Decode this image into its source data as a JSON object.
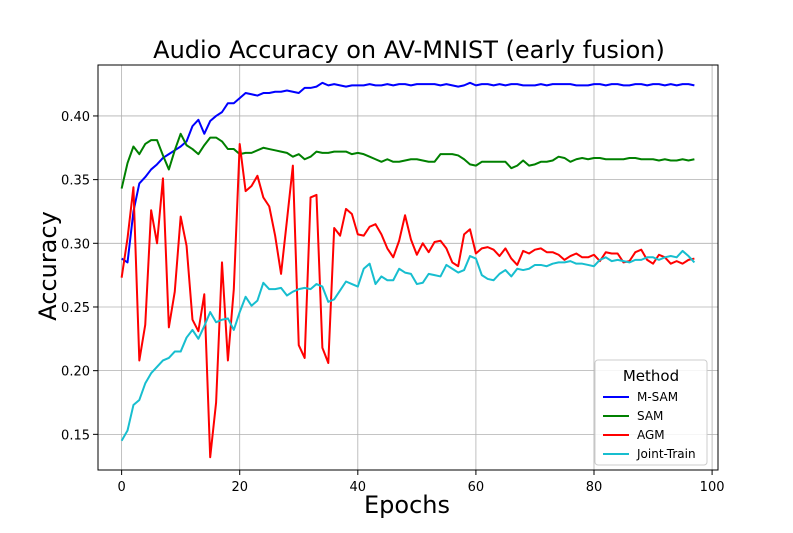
{
  "chart_data": {
    "type": "line",
    "title": "Audio Accuracy on AV-MNIST (early fusion)",
    "xlabel": "Epochs",
    "ylabel": "Accuracy",
    "xlim": [
      -4,
      101
    ],
    "ylim": [
      0.122,
      0.44
    ],
    "xticks": [
      0,
      20,
      40,
      60,
      80,
      100
    ],
    "yticks": [
      0.15,
      0.2,
      0.25,
      0.3,
      0.35,
      0.4
    ],
    "xtick_labels": [
      "0",
      "20",
      "40",
      "60",
      "80",
      "100"
    ],
    "ytick_labels": [
      "0.15",
      "0.20",
      "0.25",
      "0.30",
      "0.35",
      "0.40"
    ],
    "grid": true,
    "legend": {
      "title": "Method",
      "position": "lower-right"
    },
    "x": [
      0,
      1,
      2,
      3,
      4,
      5,
      6,
      7,
      8,
      9,
      10,
      11,
      12,
      13,
      14,
      15,
      16,
      17,
      18,
      19,
      20,
      21,
      22,
      23,
      24,
      25,
      26,
      27,
      28,
      29,
      30,
      31,
      32,
      33,
      34,
      35,
      36,
      37,
      38,
      39,
      40,
      41,
      42,
      43,
      44,
      45,
      46,
      47,
      48,
      49,
      50,
      51,
      52,
      53,
      54,
      55,
      56,
      57,
      58,
      59,
      60,
      61,
      62,
      63,
      64,
      65,
      66,
      67,
      68,
      69,
      70,
      71,
      72,
      73,
      74,
      75,
      76,
      77,
      78,
      79,
      80,
      81,
      82,
      83,
      84,
      85,
      86,
      87,
      88,
      89,
      90,
      91,
      92,
      93,
      94,
      95,
      96,
      97
    ],
    "series": [
      {
        "name": "M-SAM",
        "color": "#0000ff",
        "values": [
          0.288,
          0.285,
          0.325,
          0.347,
          0.352,
          0.358,
          0.362,
          0.367,
          0.37,
          0.373,
          0.376,
          0.38,
          0.392,
          0.397,
          0.386,
          0.396,
          0.4,
          0.403,
          0.41,
          0.41,
          0.414,
          0.418,
          0.417,
          0.416,
          0.418,
          0.418,
          0.419,
          0.419,
          0.42,
          0.419,
          0.418,
          0.422,
          0.422,
          0.423,
          0.426,
          0.424,
          0.425,
          0.424,
          0.423,
          0.424,
          0.424,
          0.424,
          0.425,
          0.424,
          0.424,
          0.425,
          0.424,
          0.425,
          0.425,
          0.424,
          0.425,
          0.425,
          0.425,
          0.425,
          0.424,
          0.425,
          0.424,
          0.423,
          0.424,
          0.426,
          0.424,
          0.425,
          0.425,
          0.424,
          0.425,
          0.424,
          0.425,
          0.425,
          0.424,
          0.424,
          0.424,
          0.425,
          0.424,
          0.425,
          0.425,
          0.425,
          0.425,
          0.424,
          0.424,
          0.424,
          0.425,
          0.425,
          0.424,
          0.425,
          0.425,
          0.424,
          0.424,
          0.425,
          0.425,
          0.424,
          0.425,
          0.425,
          0.424,
          0.425,
          0.424,
          0.425,
          0.425,
          0.424
        ]
      },
      {
        "name": "SAM",
        "color": "#008000",
        "values": [
          0.343,
          0.363,
          0.376,
          0.37,
          0.378,
          0.381,
          0.381,
          0.369,
          0.358,
          0.373,
          0.386,
          0.377,
          0.374,
          0.37,
          0.377,
          0.383,
          0.383,
          0.38,
          0.374,
          0.374,
          0.37,
          0.371,
          0.371,
          0.373,
          0.375,
          0.374,
          0.373,
          0.372,
          0.371,
          0.368,
          0.37,
          0.366,
          0.368,
          0.372,
          0.371,
          0.371,
          0.372,
          0.372,
          0.372,
          0.37,
          0.371,
          0.37,
          0.368,
          0.366,
          0.364,
          0.366,
          0.364,
          0.364,
          0.365,
          0.366,
          0.366,
          0.365,
          0.364,
          0.364,
          0.37,
          0.37,
          0.37,
          0.369,
          0.366,
          0.362,
          0.361,
          0.364,
          0.364,
          0.364,
          0.364,
          0.364,
          0.359,
          0.361,
          0.365,
          0.361,
          0.362,
          0.364,
          0.364,
          0.365,
          0.368,
          0.367,
          0.364,
          0.366,
          0.367,
          0.366,
          0.367,
          0.367,
          0.366,
          0.366,
          0.366,
          0.366,
          0.367,
          0.367,
          0.366,
          0.366,
          0.366,
          0.365,
          0.366,
          0.365,
          0.365,
          0.366,
          0.365,
          0.366
        ]
      },
      {
        "name": "AGM",
        "color": "#ff0000",
        "values": [
          0.273,
          0.304,
          0.344,
          0.208,
          0.236,
          0.326,
          0.3,
          0.351,
          0.234,
          0.262,
          0.321,
          0.298,
          0.24,
          0.231,
          0.26,
          0.132,
          0.175,
          0.285,
          0.208,
          0.264,
          0.378,
          0.341,
          0.345,
          0.353,
          0.336,
          0.329,
          0.306,
          0.276,
          0.318,
          0.361,
          0.22,
          0.21,
          0.336,
          0.338,
          0.218,
          0.206,
          0.312,
          0.306,
          0.327,
          0.323,
          0.307,
          0.306,
          0.313,
          0.315,
          0.307,
          0.296,
          0.289,
          0.302,
          0.322,
          0.303,
          0.291,
          0.3,
          0.293,
          0.301,
          0.302,
          0.296,
          0.285,
          0.282,
          0.307,
          0.311,
          0.292,
          0.296,
          0.297,
          0.295,
          0.29,
          0.296,
          0.288,
          0.283,
          0.294,
          0.292,
          0.295,
          0.296,
          0.293,
          0.293,
          0.291,
          0.287,
          0.29,
          0.292,
          0.289,
          0.289,
          0.291,
          0.286,
          0.293,
          0.292,
          0.292,
          0.285,
          0.286,
          0.293,
          0.295,
          0.287,
          0.284,
          0.291,
          0.289,
          0.284,
          0.286,
          0.284,
          0.287,
          0.288
        ]
      },
      {
        "name": "Joint-Train",
        "color": "#17becf",
        "values": [
          0.145,
          0.153,
          0.173,
          0.177,
          0.19,
          0.198,
          0.203,
          0.208,
          0.21,
          0.215,
          0.215,
          0.226,
          0.232,
          0.225,
          0.235,
          0.246,
          0.238,
          0.24,
          0.241,
          0.232,
          0.246,
          0.258,
          0.251,
          0.255,
          0.269,
          0.264,
          0.264,
          0.265,
          0.259,
          0.262,
          0.264,
          0.265,
          0.264,
          0.268,
          0.266,
          0.254,
          0.256,
          0.263,
          0.27,
          0.268,
          0.266,
          0.28,
          0.284,
          0.268,
          0.274,
          0.271,
          0.271,
          0.28,
          0.277,
          0.276,
          0.268,
          0.269,
          0.276,
          0.275,
          0.274,
          0.283,
          0.28,
          0.277,
          0.279,
          0.29,
          0.288,
          0.275,
          0.272,
          0.271,
          0.276,
          0.279,
          0.274,
          0.28,
          0.279,
          0.28,
          0.283,
          0.283,
          0.282,
          0.284,
          0.285,
          0.285,
          0.286,
          0.284,
          0.284,
          0.283,
          0.282,
          0.287,
          0.289,
          0.286,
          0.287,
          0.286,
          0.285,
          0.287,
          0.287,
          0.289,
          0.289,
          0.287,
          0.289,
          0.29,
          0.289,
          0.294,
          0.29,
          0.285
        ]
      }
    ]
  }
}
